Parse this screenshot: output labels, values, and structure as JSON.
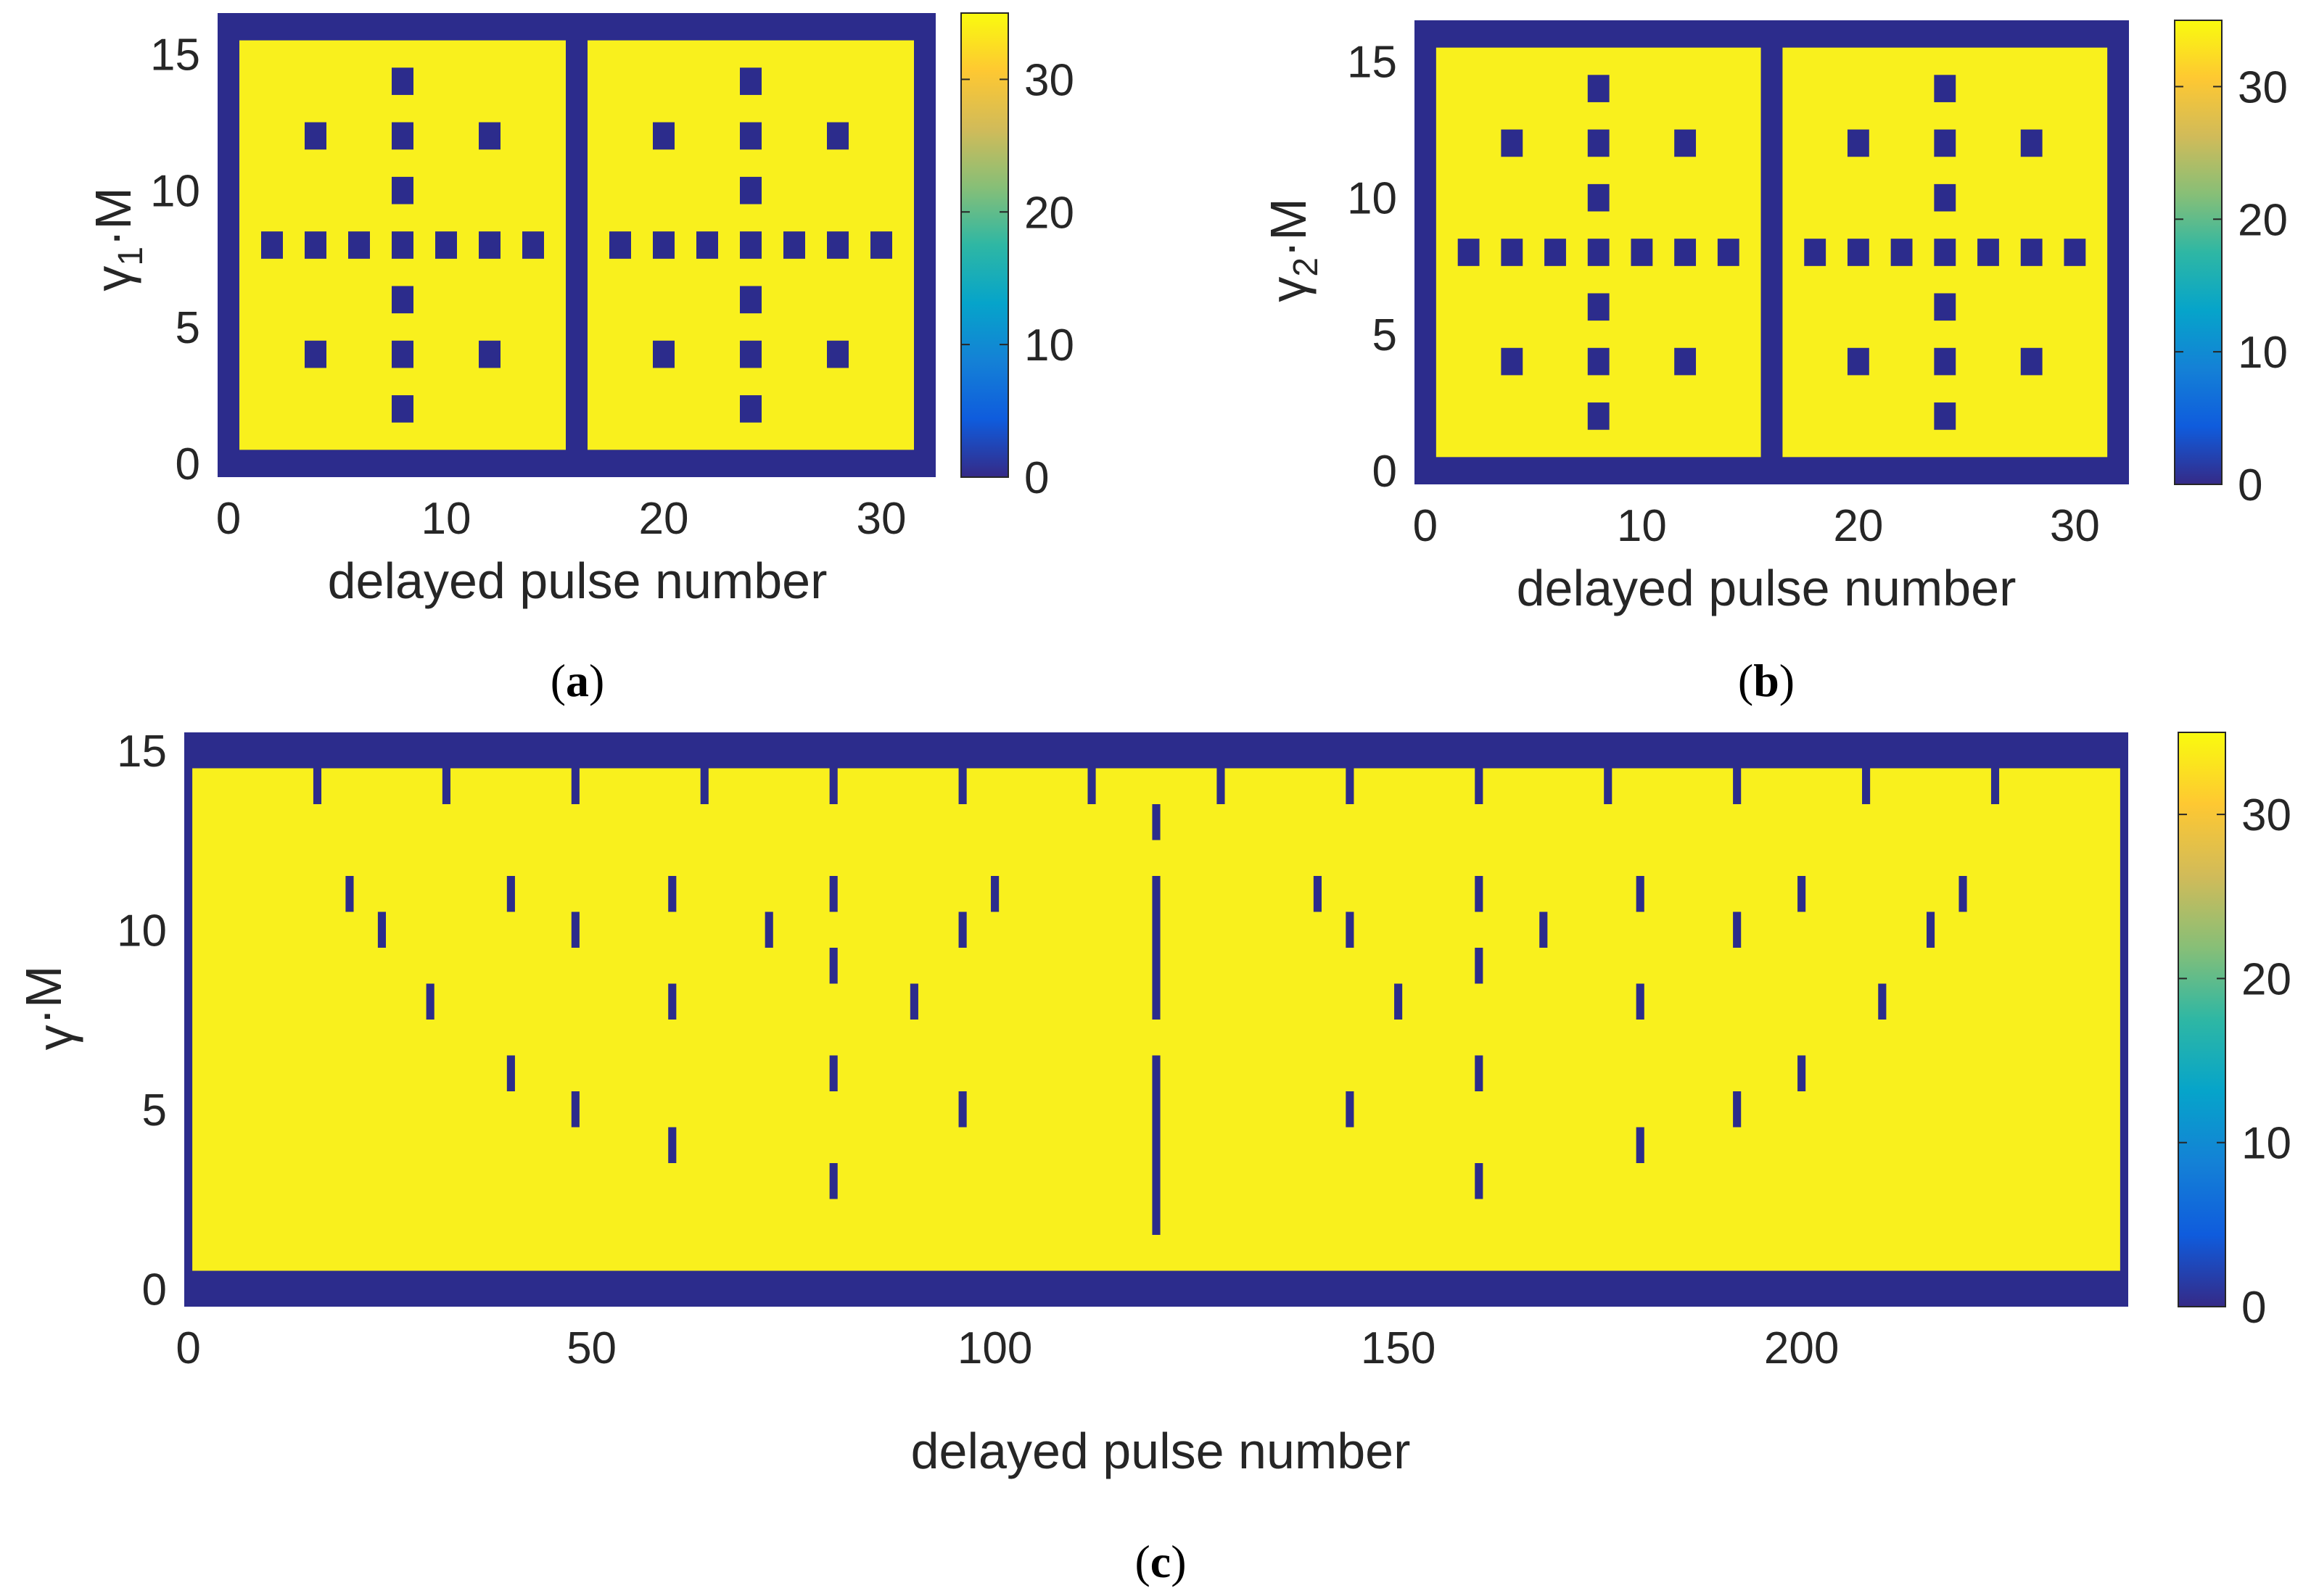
{
  "colors": {
    "background": "#F9F01D",
    "mark": "#2C2C8C",
    "axis_text": "#262626",
    "colormap": [
      "#352A87",
      "#0F5CDD",
      "#1481D6",
      "#06A4CA",
      "#2EB7A4",
      "#87BF77",
      "#D1BB59",
      "#FEC832",
      "#F9FB0E"
    ]
  },
  "panels": [
    {
      "id": "a",
      "caption_letter": "a",
      "xlabel": "delayed pulse number",
      "ylabel_base": "γ",
      "ylabel_sub": "1",
      "ylabel_tail": "·M"
    },
    {
      "id": "b",
      "caption_letter": "b",
      "xlabel": "delayed pulse number",
      "ylabel_base": "γ",
      "ylabel_sub": "2",
      "ylabel_tail": "·M"
    },
    {
      "id": "c",
      "caption_letter": "c",
      "xlabel": "delayed pulse number",
      "ylabel_base": "γ",
      "ylabel_sub": "",
      "ylabel_tail": "·M"
    }
  ],
  "chart_data": [
    {
      "type": "heatmap",
      "panel": "a",
      "xlabel": "delayed pulse number",
      "ylabel": "γ1·M",
      "xlim": [
        -0.5,
        32.5
      ],
      "ylim": [
        -0.5,
        16.5
      ],
      "xticks": [
        0,
        10,
        20,
        30
      ],
      "yticks": [
        0,
        5,
        10,
        15
      ],
      "colorbar_ticks": [
        0,
        10,
        20,
        30
      ],
      "colorbar_range": [
        0,
        35
      ],
      "background_value": 35,
      "border_value": 0,
      "full_columns": [
        16
      ],
      "full_rows": [],
      "zero_cells": [
        [
          8,
          14
        ],
        [
          24,
          14
        ],
        [
          4,
          12
        ],
        [
          8,
          12
        ],
        [
          12,
          12
        ],
        [
          20,
          12
        ],
        [
          24,
          12
        ],
        [
          28,
          12
        ],
        [
          8,
          10
        ],
        [
          24,
          10
        ],
        [
          2,
          8
        ],
        [
          4,
          8
        ],
        [
          6,
          8
        ],
        [
          8,
          8
        ],
        [
          10,
          8
        ],
        [
          12,
          8
        ],
        [
          14,
          8
        ],
        [
          18,
          8
        ],
        [
          20,
          8
        ],
        [
          22,
          8
        ],
        [
          24,
          8
        ],
        [
          26,
          8
        ],
        [
          28,
          8
        ],
        [
          30,
          8
        ],
        [
          8,
          6
        ],
        [
          24,
          6
        ],
        [
          4,
          4
        ],
        [
          8,
          4
        ],
        [
          12,
          4
        ],
        [
          20,
          4
        ],
        [
          24,
          4
        ],
        [
          28,
          4
        ],
        [
          8,
          2
        ],
        [
          24,
          2
        ]
      ]
    },
    {
      "type": "heatmap",
      "panel": "b",
      "xlabel": "delayed pulse number",
      "ylabel": "γ2·M",
      "xlim": [
        -0.5,
        32.5
      ],
      "ylim": [
        -0.5,
        16.5
      ],
      "xticks": [
        0,
        10,
        20,
        30
      ],
      "yticks": [
        0,
        5,
        10,
        15
      ],
      "colorbar_ticks": [
        0,
        10,
        20,
        30
      ],
      "colorbar_range": [
        0,
        35
      ],
      "background_value": 35,
      "border_value": 0,
      "full_columns": [
        16
      ],
      "full_rows": [],
      "zero_cells": [
        [
          8,
          14
        ],
        [
          24,
          14
        ],
        [
          4,
          12
        ],
        [
          8,
          12
        ],
        [
          12,
          12
        ],
        [
          20,
          12
        ],
        [
          24,
          12
        ],
        [
          28,
          12
        ],
        [
          8,
          10
        ],
        [
          24,
          10
        ],
        [
          2,
          8
        ],
        [
          4,
          8
        ],
        [
          6,
          8
        ],
        [
          8,
          8
        ],
        [
          10,
          8
        ],
        [
          12,
          8
        ],
        [
          14,
          8
        ],
        [
          18,
          8
        ],
        [
          20,
          8
        ],
        [
          22,
          8
        ],
        [
          24,
          8
        ],
        [
          26,
          8
        ],
        [
          28,
          8
        ],
        [
          30,
          8
        ],
        [
          8,
          6
        ],
        [
          24,
          6
        ],
        [
          4,
          4
        ],
        [
          8,
          4
        ],
        [
          12,
          4
        ],
        [
          20,
          4
        ],
        [
          24,
          4
        ],
        [
          28,
          4
        ],
        [
          8,
          2
        ],
        [
          24,
          2
        ]
      ]
    },
    {
      "type": "heatmap",
      "panel": "c",
      "xlabel": "delayed pulse number",
      "ylabel": "γ·M",
      "xlim": [
        -0.5,
        240.5
      ],
      "ylim": [
        -0.5,
        15.5
      ],
      "xticks": [
        0,
        50,
        100,
        150,
        200
      ],
      "yticks": [
        0,
        5,
        10,
        15
      ],
      "colorbar_ticks": [
        0,
        10,
        20,
        30
      ],
      "colorbar_range": [
        0,
        35
      ],
      "background_value": 35,
      "border_value": 0,
      "zero_cells": [
        [
          15,
          15
        ],
        [
          30,
          15
        ],
        [
          45,
          15
        ],
        [
          60,
          15
        ],
        [
          75,
          15
        ],
        [
          90,
          15
        ],
        [
          105,
          15
        ],
        [
          120,
          15
        ],
        [
          135,
          15
        ],
        [
          150,
          15
        ],
        [
          165,
          15
        ],
        [
          180,
          15
        ],
        [
          195,
          15
        ],
        [
          210,
          15
        ],
        [
          225,
          15
        ],
        [
          16,
          14
        ],
        [
          32,
          14
        ],
        [
          48,
          14
        ],
        [
          64,
          14
        ],
        [
          80,
          14
        ],
        [
          96,
          14
        ],
        [
          112,
          14
        ],
        [
          128,
          14
        ],
        [
          144,
          14
        ],
        [
          160,
          14
        ],
        [
          176,
          14
        ],
        [
          192,
          14
        ],
        [
          208,
          14
        ],
        [
          224,
          14
        ],
        [
          120,
          13
        ],
        [
          20,
          11
        ],
        [
          40,
          11
        ],
        [
          60,
          11
        ],
        [
          80,
          11
        ],
        [
          100,
          11
        ],
        [
          120,
          11
        ],
        [
          140,
          11
        ],
        [
          160,
          11
        ],
        [
          180,
          11
        ],
        [
          200,
          11
        ],
        [
          220,
          11
        ],
        [
          24,
          10
        ],
        [
          48,
          10
        ],
        [
          72,
          10
        ],
        [
          96,
          10
        ],
        [
          120,
          10
        ],
        [
          144,
          10
        ],
        [
          168,
          10
        ],
        [
          192,
          10
        ],
        [
          216,
          10
        ],
        [
          80,
          9
        ],
        [
          120,
          9
        ],
        [
          160,
          9
        ],
        [
          30,
          8
        ],
        [
          60,
          8
        ],
        [
          90,
          8
        ],
        [
          120,
          8
        ],
        [
          150,
          8
        ],
        [
          180,
          8
        ],
        [
          210,
          8
        ],
        [
          40,
          6
        ],
        [
          80,
          6
        ],
        [
          120,
          6
        ],
        [
          160,
          6
        ],
        [
          200,
          6
        ],
        [
          48,
          5
        ],
        [
          96,
          5
        ],
        [
          120,
          5
        ],
        [
          144,
          5
        ],
        [
          192,
          5
        ],
        [
          60,
          4
        ],
        [
          120,
          4
        ],
        [
          180,
          4
        ],
        [
          80,
          3
        ],
        [
          120,
          3
        ],
        [
          160,
          3
        ],
        [
          120,
          2
        ]
      ]
    }
  ]
}
